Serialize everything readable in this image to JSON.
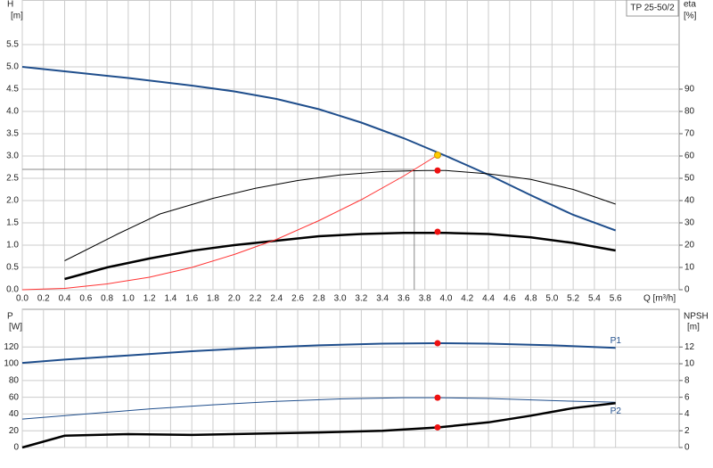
{
  "chart_data": [
    {
      "type": "line",
      "model": "TP 25-50/2",
      "y_label": "H",
      "y_unit": "[m]",
      "y2_label": "eta",
      "y2_unit": "[%]",
      "x_label": "Q [m³/h]",
      "xlim": [
        0,
        6.2
      ],
      "ylim": [
        0,
        6.5
      ],
      "y2lim": [
        0,
        130
      ],
      "grid": true,
      "xticks": [
        {
          "value": 0,
          "label": "0.0"
        },
        0.2,
        0.4,
        0.6,
        0.8,
        {
          "value": 1,
          "label": "1.0"
        },
        1.2,
        1.4,
        1.6,
        1.8,
        {
          "value": 2,
          "label": "2.0"
        },
        2.2,
        2.4,
        2.6,
        2.8,
        {
          "value": 3,
          "label": "3.0"
        },
        3.2,
        3.4,
        3.6,
        3.8,
        {
          "value": 4,
          "label": "4.0"
        },
        4.2,
        4.4,
        4.6,
        4.8,
        {
          "value": 5,
          "label": "5.0"
        },
        5.2,
        5.4,
        5.6
      ],
      "yticks": [
        {
          "value": 0,
          "label": "0.0"
        },
        0.5,
        {
          "value": 1,
          "label": "1.0"
        },
        1.5,
        {
          "value": 2,
          "label": "2.0"
        },
        2.5,
        {
          "value": 3,
          "label": "3.0"
        },
        3.5,
        {
          "value": 4,
          "label": "4.0"
        },
        4.5,
        {
          "value": 5,
          "label": "5.0"
        },
        5.5
      ],
      "y2ticks": [
        0,
        10,
        20,
        30,
        40,
        50,
        60,
        70,
        80,
        90
      ],
      "crosshair": {
        "x": 3.7,
        "y": 2.7,
        "color": "#888888"
      },
      "series": [
        {
          "color": "#1f4e8c",
          "width": 2,
          "x": [
            0,
            0.4,
            1.0,
            1.6,
            2.0,
            2.4,
            2.8,
            3.2,
            3.6,
            4.0,
            4.4,
            4.8,
            5.2,
            5.6
          ],
          "values": [
            5.0,
            4.9,
            4.75,
            4.58,
            4.45,
            4.28,
            4.05,
            3.75,
            3.4,
            3.0,
            2.58,
            2.12,
            1.68,
            1.33
          ]
        },
        {
          "color": "#000000",
          "width": 1,
          "axis": "y2",
          "x": [
            0.4,
            0.9,
            1.3,
            1.8,
            2.2,
            2.6,
            3.0,
            3.4,
            3.8,
            4.0,
            4.4,
            4.8,
            5.2,
            5.6
          ],
          "values": [
            13,
            25,
            34,
            41,
            45.5,
            49,
            51.5,
            53,
            53.5,
            53.5,
            52,
            49.5,
            45,
            38.4
          ]
        },
        {
          "color": "#000000",
          "width": 2.5,
          "axis": "y2",
          "x": [
            0.4,
            0.8,
            1.2,
            1.6,
            2.0,
            2.4,
            2.8,
            3.2,
            3.6,
            4.0,
            4.4,
            4.8,
            5.2,
            5.6
          ],
          "values": [
            4.8,
            10,
            14,
            17.5,
            20,
            22,
            24,
            25,
            25.5,
            25.5,
            25,
            23.5,
            21,
            17.6
          ]
        },
        {
          "color": "#ff3333",
          "width": 1,
          "x": [
            0,
            0.4,
            0.8,
            1.2,
            1.6,
            2.0,
            2.4,
            2.8,
            3.2,
            3.6,
            3.92
          ],
          "values": [
            0,
            0.03,
            0.13,
            0.28,
            0.5,
            0.79,
            1.13,
            1.55,
            2.02,
            2.55,
            3.02
          ]
        },
        {
          "color": "#ffcc00",
          "marker": true,
          "x": [
            3.92
          ],
          "values": [
            3.02
          ]
        },
        {
          "color": "#ee1111",
          "marker": true,
          "axis": "y2",
          "x": [
            3.92,
            3.92
          ],
          "values": [
            53.5,
            26
          ]
        }
      ]
    },
    {
      "type": "line",
      "y_label": "P",
      "y_unit": "[W]",
      "y2_label": "NPSH",
      "y2_unit": "[m]",
      "xlim": [
        0,
        6.2
      ],
      "ylim": [
        0,
        165
      ],
      "y2lim": [
        0,
        16.5
      ],
      "grid": true,
      "xticks": [
        0,
        0.2,
        0.4,
        0.6,
        0.8,
        1,
        1.2,
        1.4,
        1.6,
        1.8,
        2,
        2.2,
        2.4,
        2.6,
        2.8,
        3,
        3.2,
        3.4,
        3.6,
        3.8,
        4,
        4.2,
        4.4,
        4.6,
        4.8,
        5,
        5.2,
        5.4,
        5.6
      ],
      "show_xtick_labels": false,
      "yticks": [
        0,
        20,
        40,
        60,
        80,
        100,
        120
      ],
      "y2ticks": [
        0,
        2,
        4,
        6,
        8,
        10,
        12
      ],
      "series": [
        {
          "name": "P1",
          "color": "#1f4e8c",
          "width": 2,
          "x": [
            0,
            0.4,
            1.0,
            1.6,
            2.2,
            2.8,
            3.4,
            3.92,
            4.4,
            5.0,
            5.6
          ],
          "values": [
            101,
            105,
            110,
            115,
            119,
            122,
            124,
            124.5,
            124,
            122,
            119
          ]
        },
        {
          "name": "P2",
          "color": "#1f4e8c",
          "width": 1,
          "x": [
            0,
            0.6,
            1.2,
            1.8,
            2.4,
            3.0,
            3.6,
            3.92,
            4.4,
            5.0,
            5.6
          ],
          "values": [
            34,
            40,
            46,
            51,
            55,
            58,
            59.5,
            59.5,
            58.5,
            56,
            54
          ]
        },
        {
          "color": "#000000",
          "width": 2.5,
          "axis": "y2",
          "x": [
            0,
            0.4,
            1.0,
            1.6,
            2.2,
            2.8,
            3.4,
            3.92,
            4.4,
            4.8,
            5.2,
            5.6
          ],
          "values": [
            0,
            1.4,
            1.6,
            1.5,
            1.65,
            1.8,
            2.0,
            2.4,
            3.0,
            3.8,
            4.7,
            5.3
          ]
        },
        {
          "color": "#ee1111",
          "marker": true,
          "x": [
            3.92,
            3.92
          ],
          "values": [
            124.5,
            59.5
          ]
        },
        {
          "color": "#ee1111",
          "marker": true,
          "axis": "y2",
          "x": [
            3.92
          ],
          "values": [
            2.4
          ]
        }
      ]
    }
  ]
}
